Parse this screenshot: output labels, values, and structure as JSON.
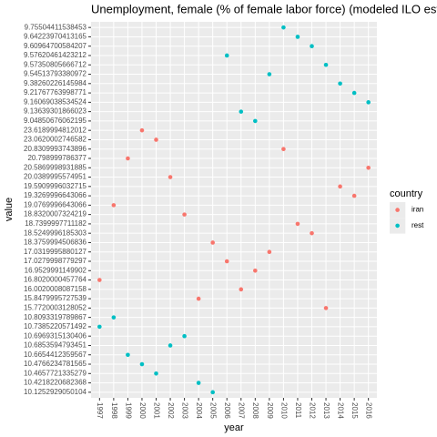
{
  "chart_data": {
    "type": "scatter",
    "title": "Unemployment, female (% of female labor force) (modeled ILO estimate)",
    "x_label": "year",
    "y_label": "value",
    "categories": [
      "1997",
      "1998",
      "1999",
      "2000",
      "2001",
      "2002",
      "2003",
      "2004",
      "2005",
      "2006",
      "2007",
      "2008",
      "2009",
      "2010",
      "2011",
      "2012",
      "2013",
      "2014",
      "2015",
      "2016"
    ],
    "y_categories": [
      "9.75504411538453",
      "9.64223970413165",
      "9.60964700584207",
      "9.57620461423212",
      "9.57350805666712",
      "9.54513793380972",
      "9.38260226145984",
      "9.21767763998771",
      "9.16069038534524",
      "9.13639301866023",
      "9.04850676062195",
      "23.6189994812012",
      "23.0620002746582",
      "20.8309993743896",
      "20.798999786377",
      "20.5869998931885",
      "20.0389995574951",
      "19.5909996032715",
      "19.3269996643066",
      "19.0769996643066",
      "18.8320007324219",
      "18.7399997711182",
      "18.5249996185303",
      "18.3759994506836",
      "17.0319995880127",
      "17.0279998779297",
      "16.9529991149902",
      "16.8020000457764",
      "16.0020008087158",
      "15.8479995727539",
      "15.7720003128052",
      "10.8093319789867",
      "10.7385220571492",
      "10.6969315130406",
      "10.6853594793451",
      "10.6654412359567",
      "10.4766234781565",
      "10.4657721335279",
      "10.4218220682368",
      "10.1252929050104"
    ],
    "legend_title": "country",
    "grid": true,
    "series": [
      {
        "name": "iran",
        "color": "#F8766D",
        "x": [
          "1997",
          "1998",
          "1999",
          "2000",
          "2001",
          "2002",
          "2003",
          "2004",
          "2005",
          "2006",
          "2007",
          "2008",
          "2009",
          "2010",
          "2011",
          "2012",
          "2013",
          "2014",
          "2015",
          "2016"
        ],
        "values": [
          16.8020000457764,
          19.0769996643066,
          20.798999786377,
          23.6189994812012,
          23.0620002746582,
          20.0389995574951,
          18.8320007324219,
          15.8479995727539,
          18.3759994506836,
          17.0279998779297,
          16.0020008087158,
          16.9529991149902,
          17.0319995880127,
          20.8309993743896,
          18.7399997711182,
          18.5249996185303,
          15.7720003128052,
          19.5909996032715,
          19.3269996643066,
          20.5869998931885
        ]
      },
      {
        "name": "rest",
        "color": "#00BFC4",
        "x": [
          "1997",
          "1998",
          "1999",
          "2000",
          "2001",
          "2002",
          "2003",
          "2004",
          "2005",
          "2006",
          "2007",
          "2008",
          "2009",
          "2010",
          "2011",
          "2012",
          "2013",
          "2014",
          "2015",
          "2016"
        ],
        "values": [
          10.7385220571492,
          10.8093319789867,
          10.6654412359567,
          10.4766234781565,
          10.4657721335279,
          10.6853594793451,
          10.6969315130406,
          10.4218220682368,
          10.1252929050104,
          9.57620461423212,
          9.13639301866023,
          9.04850676062195,
          9.54513793380972,
          9.75504411538453,
          9.64223970413165,
          9.60964700584207,
          9.57350805666712,
          9.38260226145984,
          9.21767763998771,
          9.16069038534524
        ]
      }
    ]
  }
}
